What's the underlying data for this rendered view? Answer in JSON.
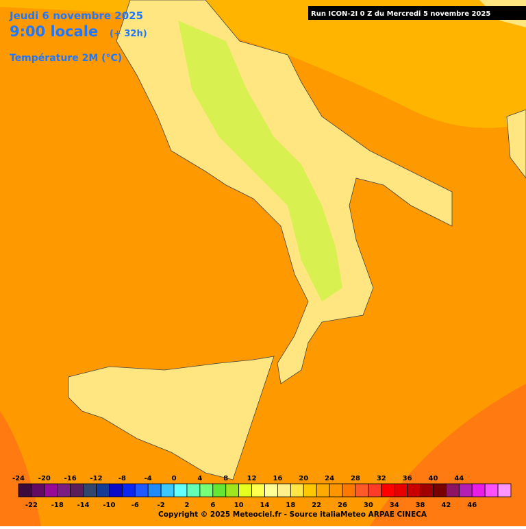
{
  "header": {
    "date": "Jeudi 6 novembre 2025",
    "time": "9:00 locale",
    "offset": "(+ 32h)",
    "variable": "Température 2M (°C)",
    "run": "Run ICON-2I 0 Z du Mercredi 5 novembre 2025"
  },
  "legend": {
    "labels_top": [
      "-24",
      "-20",
      "-16",
      "-12",
      "-8",
      "-4",
      "0",
      "4",
      "8",
      "12",
      "16",
      "20",
      "24",
      "28",
      "32",
      "36",
      "40",
      "44"
    ],
    "labels_bottom": [
      "-22",
      "-18",
      "-14",
      "-10",
      "-6",
      "-2",
      "2",
      "6",
      "10",
      "14",
      "18",
      "22",
      "26",
      "30",
      "34",
      "38",
      "42",
      "46"
    ],
    "colors": [
      "#3c0a3c",
      "#640a64",
      "#960a96",
      "#7a1e82",
      "#5a1e5a",
      "#32466e",
      "#143c96",
      "#0a0ac8",
      "#0a28f0",
      "#1e5aff",
      "#1e8cff",
      "#3cc8ff",
      "#64ffff",
      "#64ffb4",
      "#78ff78",
      "#64e632",
      "#a0e61e",
      "#e6ff1e",
      "#ffff50",
      "#ffff96",
      "#fff08c",
      "#ffe646",
      "#ffc800",
      "#ffaa00",
      "#ff9600",
      "#ff7800",
      "#ff5a28",
      "#ff3c28",
      "#ff0000",
      "#e60000",
      "#c80000",
      "#a00000",
      "#780000",
      "#8c1464",
      "#b41eb4",
      "#e61ee6",
      "#ff50ff",
      "#ff96ff"
    ],
    "copyright": "Copyright © 2025 Meteociel.fr - Source italiaMeteo ARPAE CINECA"
  }
}
